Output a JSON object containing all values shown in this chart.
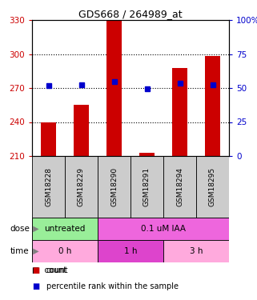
{
  "title": "GDS668 / 264989_at",
  "samples": [
    "GSM18228",
    "GSM18229",
    "GSM18290",
    "GSM18291",
    "GSM18294",
    "GSM18295"
  ],
  "bar_bottoms": [
    210,
    210,
    210,
    210,
    210,
    210
  ],
  "bar_tops": [
    240,
    255,
    330,
    213,
    288,
    298
  ],
  "blue_values": [
    272,
    273,
    276,
    269,
    274,
    273
  ],
  "ylim_left": [
    210,
    330
  ],
  "ylim_right": [
    0,
    100
  ],
  "yticks_left": [
    210,
    240,
    270,
    300,
    330
  ],
  "yticks_right": [
    0,
    25,
    50,
    75,
    100
  ],
  "bar_color": "#cc0000",
  "blue_color": "#0000cc",
  "dose_groups": [
    {
      "label": "untreated",
      "start": 0,
      "end": 2,
      "color": "#99ee99"
    },
    {
      "label": "0.1 uM IAA",
      "start": 2,
      "end": 6,
      "color": "#ee66dd"
    }
  ],
  "time_groups": [
    {
      "label": "0 h",
      "start": 0,
      "end": 2,
      "color": "#ffaadd"
    },
    {
      "label": "1 h",
      "start": 2,
      "end": 4,
      "color": "#dd44cc"
    },
    {
      "label": "3 h",
      "start": 4,
      "end": 6,
      "color": "#ffaadd"
    }
  ],
  "sample_bg_color": "#cccccc",
  "left_tick_color": "#cc0000",
  "right_tick_color": "#0000cc",
  "right_tick_labels": [
    "0",
    "25",
    "50",
    "75",
    "100%"
  ]
}
